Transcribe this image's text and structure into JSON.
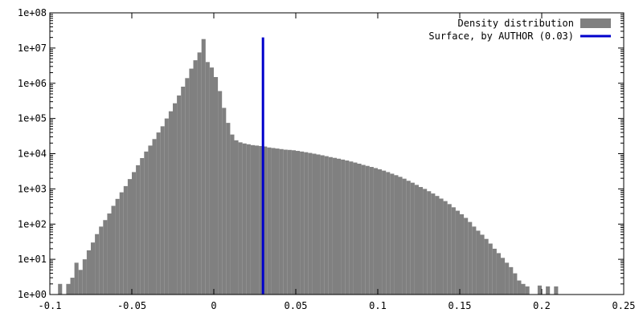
{
  "chart_data": {
    "type": "bar",
    "title": "",
    "xlabel": "",
    "ylabel": "",
    "x_scale": "linear",
    "y_scale": "log",
    "xlim": [
      -0.1,
      0.25
    ],
    "ylim": [
      1,
      100000000
    ],
    "x_ticks": [
      {
        "value": -0.1,
        "label": "-0.1"
      },
      {
        "value": -0.05,
        "label": "-0.05"
      },
      {
        "value": 0,
        "label": "0"
      },
      {
        "value": 0.05,
        "label": "0.05"
      },
      {
        "value": 0.1,
        "label": "0.1"
      },
      {
        "value": 0.15,
        "label": "0.15"
      },
      {
        "value": 0.2,
        "label": "0.2"
      },
      {
        "value": 0.25,
        "label": "0.25"
      }
    ],
    "y_ticks": [
      {
        "value": 1,
        "label": "1e+00"
      },
      {
        "value": 10,
        "label": "1e+01"
      },
      {
        "value": 100,
        "label": "1e+02"
      },
      {
        "value": 1000,
        "label": "1e+03"
      },
      {
        "value": 10000,
        "label": "1e+04"
      },
      {
        "value": 100000,
        "label": "1e+05"
      },
      {
        "value": 1000000,
        "label": "1e+06"
      },
      {
        "value": 10000000,
        "label": "1e+07"
      },
      {
        "value": 100000000,
        "label": "1e+08"
      }
    ],
    "grid": false,
    "legend_position": "top-right",
    "bin_width": 0.0025,
    "series": [
      {
        "name": "Density distribution",
        "kind": "histogram",
        "color": "#808080",
        "bins": [
          [
            -0.0975,
            1
          ],
          [
            -0.095,
            2
          ],
          [
            -0.0925,
            1
          ],
          [
            -0.09,
            2
          ],
          [
            -0.0875,
            3
          ],
          [
            -0.085,
            8
          ],
          [
            -0.0825,
            5
          ],
          [
            -0.08,
            10
          ],
          [
            -0.0775,
            18
          ],
          [
            -0.075,
            30
          ],
          [
            -0.0725,
            52
          ],
          [
            -0.07,
            85
          ],
          [
            -0.0675,
            130
          ],
          [
            -0.065,
            200
          ],
          [
            -0.0625,
            330
          ],
          [
            -0.06,
            520
          ],
          [
            -0.0575,
            800
          ],
          [
            -0.055,
            1200
          ],
          [
            -0.0525,
            1900
          ],
          [
            -0.05,
            3000
          ],
          [
            -0.0475,
            4700
          ],
          [
            -0.045,
            7500
          ],
          [
            -0.0425,
            11500
          ],
          [
            -0.04,
            17000
          ],
          [
            -0.0375,
            26000
          ],
          [
            -0.035,
            40000
          ],
          [
            -0.0325,
            60000
          ],
          [
            -0.03,
            100000
          ],
          [
            -0.0275,
            160000
          ],
          [
            -0.025,
            270000
          ],
          [
            -0.0225,
            450000
          ],
          [
            -0.02,
            800000
          ],
          [
            -0.0175,
            1400000
          ],
          [
            -0.015,
            2600000
          ],
          [
            -0.0125,
            4500000
          ],
          [
            -0.01,
            7500000
          ],
          [
            -0.0075,
            18000000
          ],
          [
            -0.005,
            4000000
          ],
          [
            -0.0025,
            2800000
          ],
          [
            0,
            1500000
          ],
          [
            0.0025,
            600000
          ],
          [
            0.005,
            200000
          ],
          [
            0.0075,
            75000
          ],
          [
            0.01,
            35000
          ],
          [
            0.0125,
            24000
          ],
          [
            0.015,
            21000
          ],
          [
            0.0175,
            19500
          ],
          [
            0.02,
            18500
          ],
          [
            0.0225,
            17500
          ],
          [
            0.025,
            17000
          ],
          [
            0.0275,
            16500
          ],
          [
            0.03,
            16000
          ],
          [
            0.0325,
            15000
          ],
          [
            0.035,
            14500
          ],
          [
            0.0375,
            14000
          ],
          [
            0.04,
            13500
          ],
          [
            0.0425,
            13000
          ],
          [
            0.045,
            12800
          ],
          [
            0.0475,
            12500
          ],
          [
            0.05,
            12000
          ],
          [
            0.0525,
            11500
          ],
          [
            0.055,
            11000
          ],
          [
            0.0575,
            10500
          ],
          [
            0.06,
            10000
          ],
          [
            0.0625,
            9500
          ],
          [
            0.065,
            9000
          ],
          [
            0.0675,
            8500
          ],
          [
            0.07,
            8000
          ],
          [
            0.0725,
            7600
          ],
          [
            0.075,
            7200
          ],
          [
            0.0775,
            6800
          ],
          [
            0.08,
            6400
          ],
          [
            0.0825,
            6000
          ],
          [
            0.085,
            5600
          ],
          [
            0.0875,
            5200
          ],
          [
            0.09,
            4800
          ],
          [
            0.0925,
            4500
          ],
          [
            0.095,
            4200
          ],
          [
            0.0975,
            3900
          ],
          [
            0.1,
            3600
          ],
          [
            0.1025,
            3300
          ],
          [
            0.105,
            3000
          ],
          [
            0.1075,
            2700
          ],
          [
            0.11,
            2450
          ],
          [
            0.1125,
            2200
          ],
          [
            0.115,
            1950
          ],
          [
            0.1175,
            1700
          ],
          [
            0.12,
            1500
          ],
          [
            0.1225,
            1300
          ],
          [
            0.125,
            1130
          ],
          [
            0.1275,
            1000
          ],
          [
            0.13,
            860
          ],
          [
            0.1325,
            740
          ],
          [
            0.135,
            630
          ],
          [
            0.1375,
            530
          ],
          [
            0.14,
            450
          ],
          [
            0.1425,
            370
          ],
          [
            0.145,
            300
          ],
          [
            0.1475,
            240
          ],
          [
            0.15,
            190
          ],
          [
            0.1525,
            150
          ],
          [
            0.155,
            115
          ],
          [
            0.1575,
            85
          ],
          [
            0.16,
            65
          ],
          [
            0.1625,
            50
          ],
          [
            0.165,
            38
          ],
          [
            0.1675,
            28
          ],
          [
            0.17,
            20
          ],
          [
            0.1725,
            15
          ],
          [
            0.175,
            11
          ],
          [
            0.1775,
            8
          ],
          [
            0.18,
            6
          ],
          [
            0.1825,
            4
          ],
          [
            0.185,
            2.5
          ],
          [
            0.1875,
            2
          ],
          [
            0.19,
            1.7
          ],
          [
            0.1925,
            1
          ],
          [
            0.195,
            1
          ],
          [
            0.1975,
            1.8
          ],
          [
            0.2,
            1
          ],
          [
            0.2025,
            1.7
          ],
          [
            0.205,
            1
          ],
          [
            0.2075,
            1.7
          ]
        ]
      },
      {
        "name": "Surface, by AUTHOR (0.03)",
        "kind": "vline",
        "color": "#0000cc",
        "x": 0.03,
        "y_top": 20000000
      }
    ]
  }
}
